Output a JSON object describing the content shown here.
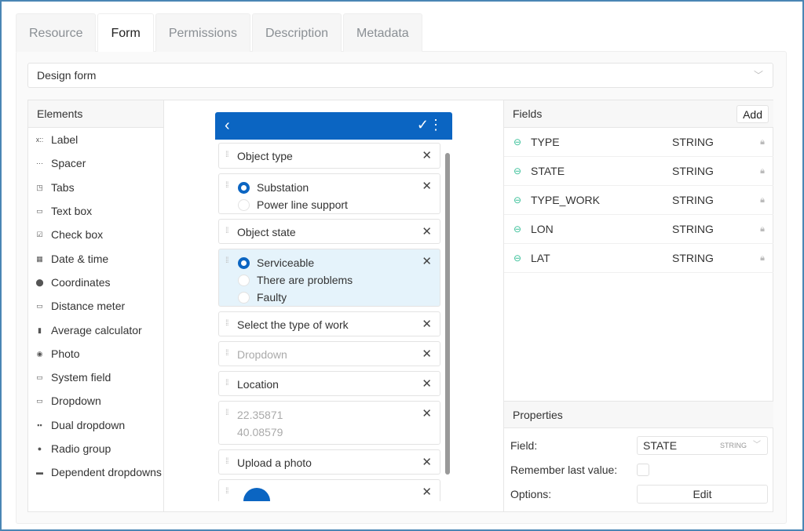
{
  "tabs": [
    "Resource",
    "Form",
    "Permissions",
    "Description",
    "Metadata"
  ],
  "active_tab": "Form",
  "design_select": "Design form",
  "elements": {
    "title": "Elements",
    "items": [
      {
        "label": "Label",
        "icon": "label-icon",
        "g": "x::"
      },
      {
        "label": "Spacer",
        "icon": "spacer-icon",
        "g": "⋯"
      },
      {
        "label": "Tabs",
        "icon": "tabs-icon",
        "g": "◳"
      },
      {
        "label": "Text box",
        "icon": "textbox-icon",
        "g": "▭"
      },
      {
        "label": "Check box",
        "icon": "checkbox-icon",
        "g": "☑"
      },
      {
        "label": "Date & time",
        "icon": "calendar-icon",
        "g": "▦"
      },
      {
        "label": "Coordinates",
        "icon": "map-pin-icon",
        "g": "⬤"
      },
      {
        "label": "Distance meter",
        "icon": "ruler-icon",
        "g": "▭"
      },
      {
        "label": "Average calculator",
        "icon": "calculator-icon",
        "g": "▮"
      },
      {
        "label": "Photo",
        "icon": "camera-icon",
        "g": "◉"
      },
      {
        "label": "System field",
        "icon": "system-field-icon",
        "g": "▭"
      },
      {
        "label": "Dropdown",
        "icon": "dropdown-icon",
        "g": "▭"
      },
      {
        "label": "Dual dropdown",
        "icon": "dual-dropdown-icon",
        "g": "▪▪"
      },
      {
        "label": "Radio group",
        "icon": "radio-group-icon",
        "g": "●"
      },
      {
        "label": "Dependent dropdowns",
        "icon": "dependent-dropdowns-icon",
        "g": "▬"
      }
    ]
  },
  "form": {
    "cards": [
      {
        "text": "Object type"
      },
      {
        "options": [
          "Substation",
          "Power line support"
        ],
        "selected": 0
      },
      {
        "text": "Object state"
      },
      {
        "options": [
          "Serviceable",
          "There are problems",
          "Faulty"
        ],
        "selected": 0
      },
      {
        "text": "Select the type of work"
      },
      {
        "placeholder": "Dropdown"
      },
      {
        "text": "Location"
      },
      {
        "coords": [
          "22.35871",
          "40.08579"
        ]
      },
      {
        "text": "Upload a photo"
      },
      {
        "photo": true
      }
    ]
  },
  "fields": {
    "title": "Fields",
    "add_label": "Add",
    "rows": [
      {
        "name": "TYPE",
        "type": "STRING"
      },
      {
        "name": "STATE",
        "type": "STRING"
      },
      {
        "name": "TYPE_WORK",
        "type": "STRING"
      },
      {
        "name": "LON",
        "type": "STRING"
      },
      {
        "name": "LAT",
        "type": "STRING"
      }
    ]
  },
  "properties": {
    "title": "Properties",
    "field_label": "Field:",
    "field_value": "STATE",
    "field_type": "STRING",
    "remember_label": "Remember last value:",
    "remember_checked": false,
    "options_label": "Options:",
    "edit_label": "Edit"
  },
  "colors": {
    "accent": "#0b65c2",
    "selected_card": "#e5f3fb",
    "link": "#3cc19a"
  }
}
